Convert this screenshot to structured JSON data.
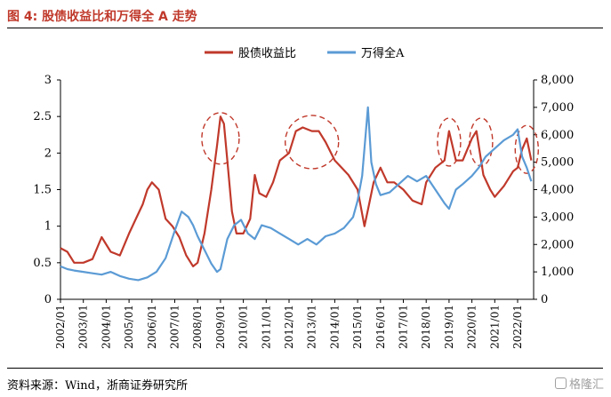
{
  "header": {
    "title": "图 4: 股债收益比和万得全 A 走势"
  },
  "footer": {
    "source": "资料来源：Wind，浙商证券研究所",
    "watermark": "格隆汇"
  },
  "colors": {
    "red": "#c0392b",
    "blue": "#5b9bd5",
    "circle": "#c0392b"
  },
  "chart_data": {
    "type": "line",
    "legend_position": "top-center",
    "grid": false,
    "x_ticks": [
      "2002/01",
      "2003/01",
      "2004/01",
      "2005/01",
      "2006/01",
      "2007/01",
      "2008/01",
      "2009/01",
      "2010/01",
      "2011/01",
      "2012/01",
      "2013/01",
      "2014/01",
      "2015/01",
      "2016/01",
      "2017/01",
      "2018/01",
      "2019/01",
      "2020/01",
      "2021/01",
      "2022/01"
    ],
    "x_range": [
      2002.0,
      2022.7
    ],
    "left_axis": {
      "ylim": [
        0,
        3
      ],
      "ticks": [
        "0",
        "0.5",
        "1",
        "1.5",
        "2",
        "2.5",
        "3"
      ]
    },
    "right_axis": {
      "ylim": [
        0,
        8000
      ],
      "ticks": [
        "0",
        "1,000",
        "2,000",
        "3,000",
        "4,000",
        "5,000",
        "6,000",
        "7,000",
        "8,000"
      ]
    },
    "series": [
      {
        "name": "股债收益比",
        "axis": "left",
        "color": "#c0392b",
        "x": [
          2002.0,
          2002.3,
          2002.6,
          2003.0,
          2003.4,
          2003.8,
          2004.2,
          2004.6,
          2005.0,
          2005.3,
          2005.6,
          2005.8,
          2006.0,
          2006.3,
          2006.6,
          2006.9,
          2007.2,
          2007.5,
          2007.8,
          2008.0,
          2008.3,
          2008.6,
          2008.85,
          2009.0,
          2009.15,
          2009.3,
          2009.5,
          2009.7,
          2010.0,
          2010.3,
          2010.5,
          2010.7,
          2011.0,
          2011.3,
          2011.6,
          2012.0,
          2012.3,
          2012.6,
          2013.0,
          2013.3,
          2013.6,
          2014.0,
          2014.3,
          2014.6,
          2015.0,
          2015.3,
          2015.5,
          2015.7,
          2016.0,
          2016.3,
          2016.6,
          2017.0,
          2017.4,
          2017.8,
          2018.0,
          2018.4,
          2018.8,
          2019.0,
          2019.3,
          2019.6,
          2020.0,
          2020.2,
          2020.5,
          2020.8,
          2021.0,
          2021.4,
          2021.8,
          2022.0,
          2022.2,
          2022.4,
          2022.6
        ],
        "values": [
          0.7,
          0.65,
          0.5,
          0.5,
          0.55,
          0.85,
          0.65,
          0.6,
          0.9,
          1.1,
          1.3,
          1.5,
          1.6,
          1.5,
          1.1,
          1.0,
          0.85,
          0.6,
          0.45,
          0.5,
          0.9,
          1.5,
          2.1,
          2.5,
          2.4,
          1.9,
          1.2,
          0.9,
          0.9,
          1.1,
          1.7,
          1.45,
          1.4,
          1.6,
          1.9,
          2.0,
          2.3,
          2.35,
          2.3,
          2.3,
          2.15,
          1.9,
          1.8,
          1.7,
          1.5,
          1.0,
          1.3,
          1.6,
          1.8,
          1.6,
          1.6,
          1.5,
          1.35,
          1.3,
          1.6,
          1.8,
          1.9,
          2.3,
          1.9,
          1.9,
          2.2,
          2.3,
          1.7,
          1.5,
          1.4,
          1.55,
          1.75,
          1.8,
          2.05,
          2.2,
          1.9
        ]
      },
      {
        "name": "万得全A",
        "axis": "right",
        "color": "#5b9bd5",
        "x": [
          2002.0,
          2002.3,
          2002.6,
          2003.0,
          2003.4,
          2003.8,
          2004.2,
          2004.6,
          2005.0,
          2005.4,
          2005.8,
          2006.2,
          2006.6,
          2007.0,
          2007.3,
          2007.6,
          2007.8,
          2008.0,
          2008.3,
          2008.6,
          2008.85,
          2009.0,
          2009.3,
          2009.6,
          2009.9,
          2010.2,
          2010.5,
          2010.8,
          2011.2,
          2011.6,
          2012.0,
          2012.4,
          2012.8,
          2013.2,
          2013.6,
          2014.0,
          2014.4,
          2014.8,
          2015.0,
          2015.2,
          2015.4,
          2015.45,
          2015.6,
          2015.8,
          2016.0,
          2016.4,
          2016.8,
          2017.2,
          2017.6,
          2018.0,
          2018.4,
          2018.8,
          2019.0,
          2019.3,
          2019.6,
          2020.0,
          2020.3,
          2020.6,
          2021.0,
          2021.4,
          2021.8,
          2022.0,
          2022.2,
          2022.4,
          2022.6
        ],
        "values": [
          1200,
          1100,
          1050,
          1000,
          950,
          900,
          1000,
          850,
          750,
          700,
          800,
          1000,
          1500,
          2500,
          3200,
          3000,
          2700,
          2300,
          1800,
          1300,
          1000,
          1100,
          2200,
          2700,
          2900,
          2400,
          2200,
          2700,
          2600,
          2400,
          2200,
          2000,
          2200,
          2000,
          2300,
          2400,
          2600,
          3000,
          3600,
          4500,
          6500,
          7000,
          5000,
          4200,
          3800,
          3900,
          4200,
          4500,
          4300,
          4500,
          4000,
          3500,
          3300,
          4000,
          4200,
          4500,
          4800,
          5200,
          5500,
          5800,
          6000,
          6200,
          5200,
          4800,
          4300
        ]
      }
    ],
    "annotations": [
      {
        "type": "dashed-ellipse",
        "cx": 2009.0,
        "cy": 2.2
      },
      {
        "type": "dashed-ellipse",
        "cx": 2013.0,
        "cy": 2.15
      },
      {
        "type": "dashed-ellipse",
        "cx": 2019.0,
        "cy": 2.15
      },
      {
        "type": "dashed-ellipse",
        "cx": 2020.4,
        "cy": 2.15
      },
      {
        "type": "dashed-ellipse",
        "cx": 2022.4,
        "cy": 2.05
      }
    ]
  }
}
